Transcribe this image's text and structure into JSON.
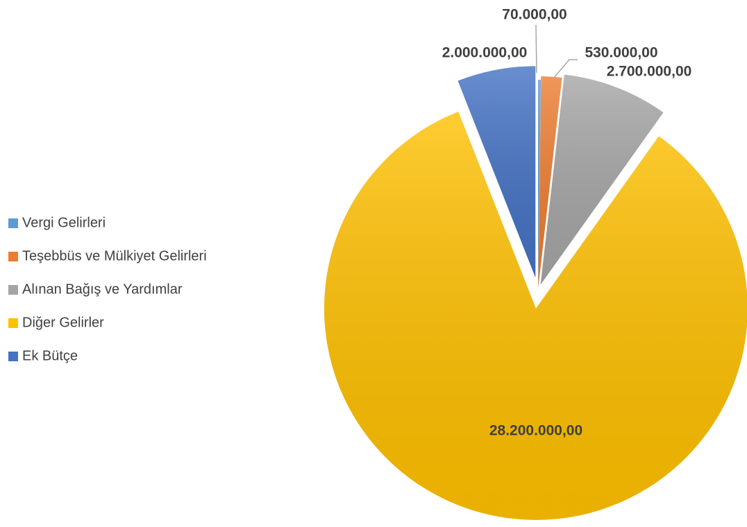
{
  "chart_data": {
    "type": "pie",
    "categories": [
      "Vergi Gelirleri",
      "Teşebbüs ve Mülkiyet Gelirleri",
      "Alınan Bağış ve Yardımlar",
      "Diğer Gelirler",
      "Ek Bütçe"
    ],
    "values": [
      70000,
      530000,
      2700000,
      28200000,
      2000000
    ],
    "value_labels": [
      "70.000,00",
      "530.000,00",
      "2.700.000,00",
      "28.200.000,00",
      "2.000.000,00"
    ],
    "colors": [
      "#5b9bd5",
      "#ed7d31",
      "#a5a5a5",
      "#ffc000",
      "#4472c4"
    ],
    "legend": "left"
  }
}
